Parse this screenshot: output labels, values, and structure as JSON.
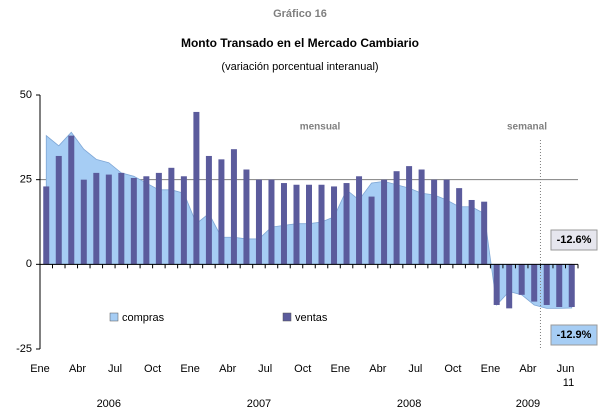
{
  "chart_data": {
    "type": "bar_area",
    "supertitle": "Gráfico 16",
    "title": "Monto Transado en el Mercado Cambiario",
    "subtitle": "(variación porcentual interanual)",
    "categories": [
      "Ene",
      null,
      null,
      "Abr",
      null,
      null,
      "Jul",
      null,
      null,
      "Oct",
      null,
      null,
      "Ene",
      null,
      null,
      "Abr",
      null,
      null,
      "Jul",
      null,
      null,
      "Oct",
      null,
      null,
      "Ene",
      null,
      null,
      "Abr",
      null,
      null,
      "Jul",
      null,
      null,
      "Oct",
      null,
      null,
      "Ene",
      null,
      null,
      "Abr",
      null,
      null,
      "Jun 11"
    ],
    "years": [
      "2006",
      "2007",
      "2008",
      "2009"
    ],
    "series": [
      {
        "name": "compras",
        "kind": "area",
        "color": "#a6cdf4",
        "values": [
          38,
          35,
          39,
          34,
          31,
          30,
          27,
          26,
          24,
          22,
          22,
          21,
          12,
          15,
          8,
          8,
          7.5,
          7.5,
          11,
          11.5,
          12,
          12,
          12.5,
          14,
          22,
          19,
          24,
          24.5,
          23.5,
          22.5,
          21,
          20.5,
          19,
          17,
          17,
          15,
          -12,
          -8,
          -9,
          -12,
          -13,
          -13,
          -12.9
        ],
        "value_labels": [
          null,
          null,
          null,
          null,
          null,
          null,
          null,
          null,
          null,
          null,
          null,
          null,
          null,
          null,
          null,
          null,
          null,
          null,
          null,
          null,
          null,
          null,
          null,
          null,
          null,
          null,
          null,
          null,
          null,
          null,
          null,
          null,
          null,
          null,
          null,
          null,
          null,
          null,
          null,
          null,
          null,
          null,
          "-12.9%"
        ]
      },
      {
        "name": "ventas",
        "kind": "bar",
        "color": "#5b5b9c",
        "values": [
          23,
          32,
          38,
          25,
          27,
          26.5,
          27,
          25.5,
          26,
          27,
          28.5,
          26,
          45,
          32,
          31,
          34,
          28,
          25,
          25,
          24,
          23.5,
          23.5,
          23.5,
          23,
          24,
          26,
          20,
          25,
          27.5,
          29,
          28,
          25,
          25,
          22.5,
          19,
          18.5,
          -12,
          -13,
          -9,
          -11,
          -12,
          -12.6,
          -12.6
        ],
        "value_labels": [
          null,
          null,
          null,
          null,
          null,
          null,
          null,
          null,
          null,
          null,
          null,
          null,
          null,
          null,
          null,
          null,
          null,
          null,
          null,
          null,
          null,
          null,
          null,
          null,
          null,
          null,
          null,
          null,
          null,
          null,
          null,
          null,
          null,
          null,
          null,
          null,
          null,
          null,
          null,
          null,
          null,
          null,
          "-12.6%"
        ]
      }
    ],
    "annotations": [
      "mensual",
      "semanal"
    ],
    "ylim": [
      -25,
      50
    ],
    "yticks": [
      -25,
      0,
      25,
      50
    ],
    "grid": true,
    "legend": "lower left"
  }
}
